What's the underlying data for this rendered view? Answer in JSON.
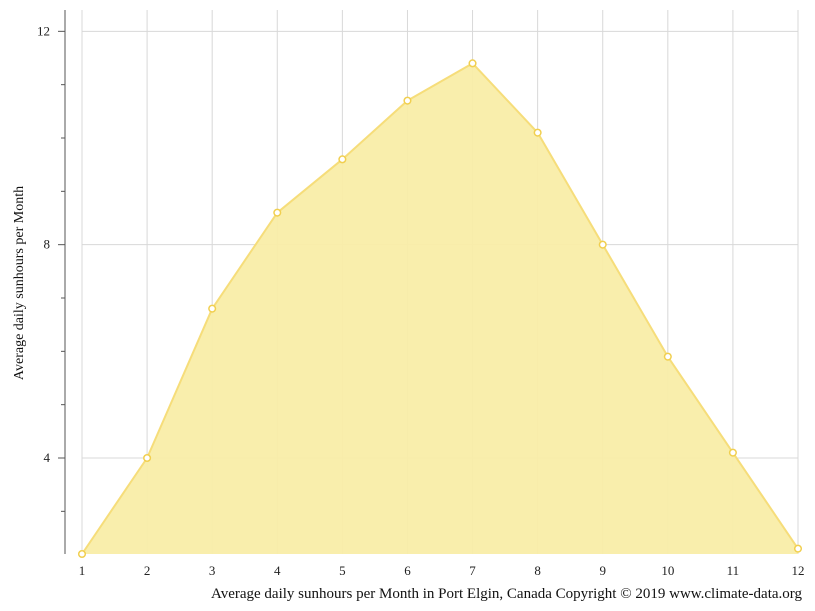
{
  "chart_data": {
    "type": "area",
    "ylabel": "Average daily sunhours per Month",
    "caption": "Average daily sunhours per Month in Port Elgin, Canada Copyright © 2019 www.climate-data.org",
    "x": [
      1,
      2,
      3,
      4,
      5,
      6,
      7,
      8,
      9,
      10,
      11,
      12
    ],
    "series": [
      {
        "values": [
          2.2,
          4.0,
          6.8,
          8.6,
          9.6,
          10.7,
          11.4,
          10.1,
          8.0,
          5.9,
          4.1,
          2.3
        ]
      }
    ],
    "xlim": [
      1,
      12
    ],
    "ylim": [
      2.2,
      12.4
    ],
    "y_ticks": [
      4,
      8,
      12
    ],
    "y_minor_ticks": [
      3,
      5,
      6,
      7,
      9,
      10,
      11
    ],
    "grid": true,
    "colors": {
      "area_fill": "#f9eda8",
      "line": "#f6dd7a",
      "marker_fill": "#ffffff",
      "marker_stroke": "#f1cf4f",
      "grid": "#d8d8d8",
      "axis": "#555555"
    }
  }
}
